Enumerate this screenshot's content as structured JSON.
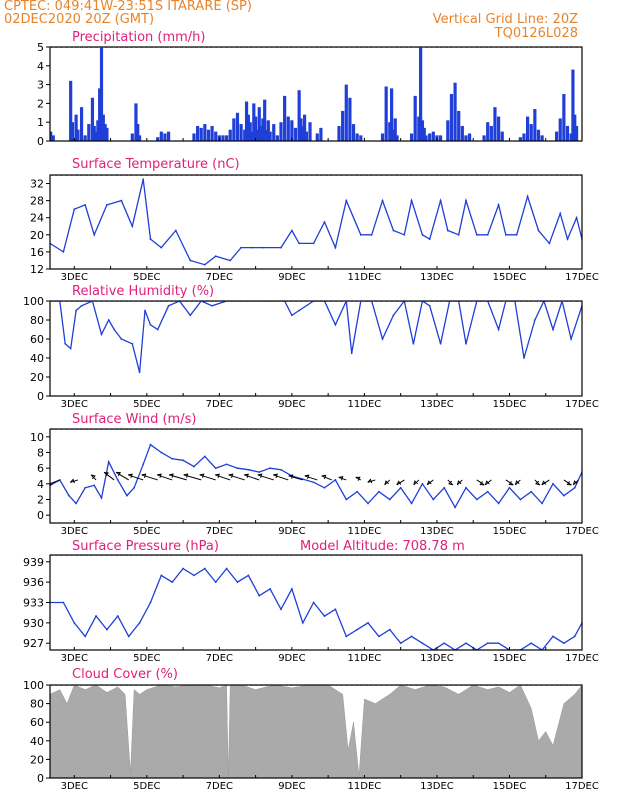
{
  "header": {
    "line1_left": "CPTEC:   049:41W-23:51S   ITARARE (SP)",
    "line2_left": "02DEC2020 20Z (GMT)",
    "line1_right": "Vertical Grid Line: 20Z",
    "line2_right": "TQ0126L028",
    "color": "#e8832a"
  },
  "colors": {
    "title": "#e0207a",
    "series": "#1f3fd8",
    "cloud": "#aaaaaa"
  },
  "x_axis": {
    "min": 2.33,
    "max": 17.0,
    "tick_values": [
      3,
      5,
      7,
      9,
      11,
      13,
      15,
      17
    ],
    "tick_labels": [
      "3DEC",
      "5DEC",
      "7DEC",
      "9DEC",
      "11DEC",
      "13DEC",
      "15DEC",
      "17DEC"
    ]
  },
  "chart_data": [
    {
      "type": "bar",
      "title": "Precipitation (mm/h)",
      "yticks": [
        0,
        1,
        2,
        3,
        4,
        5
      ],
      "ylim": [
        0,
        5
      ],
      "show_xlabels": false,
      "x": [
        2.35,
        2.42,
        2.9,
        2.95,
        3.05,
        3.1,
        3.2,
        3.3,
        3.4,
        3.5,
        3.55,
        3.6,
        3.65,
        3.7,
        3.75,
        3.8,
        3.85,
        3.9,
        4.6,
        4.7,
        4.75,
        4.8,
        5.3,
        5.4,
        5.5,
        5.6,
        6.3,
        6.4,
        6.5,
        6.6,
        6.7,
        6.8,
        6.9,
        7.0,
        7.1,
        7.2,
        7.3,
        7.4,
        7.5,
        7.6,
        7.7,
        7.75,
        7.8,
        7.85,
        7.9,
        7.95,
        8.0,
        8.05,
        8.1,
        8.15,
        8.2,
        8.25,
        8.3,
        8.35,
        8.4,
        8.5,
        8.6,
        8.7,
        8.8,
        8.9,
        9.0,
        9.1,
        9.2,
        9.25,
        9.3,
        9.35,
        9.4,
        9.5,
        9.7,
        9.8,
        10.3,
        10.4,
        10.5,
        10.6,
        10.7,
        10.8,
        10.9,
        11.5,
        11.6,
        11.7,
        11.75,
        11.8,
        11.85,
        11.9,
        12.3,
        12.4,
        12.5,
        12.55,
        12.6,
        12.65,
        12.7,
        12.8,
        12.9,
        13.0,
        13.1,
        13.3,
        13.4,
        13.5,
        13.6,
        13.7,
        13.8,
        13.9,
        14.3,
        14.4,
        14.5,
        14.6,
        14.7,
        14.8,
        15.3,
        15.4,
        15.5,
        15.6,
        15.7,
        15.8,
        15.9,
        16.3,
        16.4,
        16.5,
        16.6,
        16.7,
        16.75,
        16.8,
        16.85
      ],
      "values": [
        0.5,
        0.3,
        3.2,
        1.0,
        1.4,
        0.6,
        1.8,
        0.3,
        0.9,
        2.3,
        0.8,
        0.5,
        1.1,
        2.8,
        5.0,
        1.4,
        0.9,
        0.7,
        0.4,
        2.0,
        0.9,
        0.3,
        0.2,
        0.5,
        0.4,
        0.5,
        0.4,
        0.8,
        0.7,
        0.9,
        0.6,
        0.8,
        0.5,
        0.3,
        0.3,
        0.3,
        0.6,
        1.2,
        1.5,
        0.9,
        0.6,
        2.1,
        1.4,
        1.0,
        0.5,
        2.0,
        1.3,
        0.6,
        1.8,
        0.8,
        1.2,
        2.2,
        0.6,
        1.1,
        0.5,
        0.9,
        0.3,
        1.0,
        2.4,
        1.3,
        1.1,
        0.7,
        2.7,
        1.2,
        0.8,
        1.4,
        0.5,
        1.0,
        0.4,
        0.7,
        0.8,
        1.6,
        3.0,
        2.3,
        0.9,
        0.4,
        0.3,
        0.4,
        2.9,
        1.0,
        2.8,
        0.6,
        1.2,
        0.3,
        0.4,
        2.4,
        1.3,
        5.0,
        1.1,
        0.7,
        0.3,
        0.4,
        0.5,
        0.3,
        0.3,
        1.1,
        2.5,
        3.1,
        1.6,
        0.8,
        0.3,
        0.4,
        0.3,
        1.0,
        0.8,
        1.8,
        1.3,
        0.5,
        0.2,
        0.4,
        1.3,
        0.9,
        1.7,
        0.6,
        0.3,
        0.5,
        1.2,
        2.5,
        0.8,
        0.4,
        3.8,
        1.4,
        0.8
      ]
    },
    {
      "type": "line",
      "title": "Surface Temperature (nC)",
      "yticks": [
        12,
        16,
        20,
        24,
        28,
        32
      ],
      "ylim": [
        12,
        34
      ],
      "show_xlabels": true,
      "x": [
        2.33,
        2.7,
        3.0,
        3.3,
        3.55,
        3.9,
        4.3,
        4.6,
        4.9,
        5.1,
        5.4,
        5.8,
        6.2,
        6.6,
        6.9,
        7.3,
        7.6,
        7.9,
        8.2,
        8.7,
        9.0,
        9.2,
        9.6,
        9.9,
        10.2,
        10.5,
        10.9,
        11.2,
        11.5,
        11.8,
        12.1,
        12.3,
        12.6,
        12.8,
        13.1,
        13.3,
        13.6,
        13.8,
        14.1,
        14.4,
        14.7,
        14.9,
        15.2,
        15.5,
        15.8,
        16.1,
        16.4,
        16.6,
        16.85,
        17.0
      ],
      "values": [
        18,
        16,
        26,
        27,
        20,
        27,
        28,
        22,
        33,
        19,
        17,
        21,
        14,
        13,
        15,
        14,
        17,
        17,
        17,
        17,
        21,
        18,
        18,
        23,
        17,
        28,
        20,
        20,
        28,
        21,
        20,
        28,
        20,
        19,
        28,
        21,
        20,
        28,
        20,
        20,
        27,
        20,
        20,
        29,
        21,
        18,
        25,
        19,
        24,
        19
      ]
    },
    {
      "type": "line",
      "title": "Relative Humidity (%)",
      "yticks": [
        0,
        20,
        40,
        60,
        80,
        100
      ],
      "ylim": [
        0,
        100
      ],
      "show_xlabels": true,
      "x": [
        2.33,
        2.6,
        2.75,
        2.9,
        3.05,
        3.2,
        3.5,
        3.75,
        3.95,
        4.1,
        4.3,
        4.6,
        4.8,
        4.95,
        5.1,
        5.3,
        5.6,
        5.9,
        6.2,
        6.5,
        6.8,
        7.2,
        7.6,
        8.0,
        8.4,
        8.8,
        9.0,
        9.2,
        9.6,
        9.9,
        10.2,
        10.5,
        10.65,
        10.9,
        11.2,
        11.5,
        11.8,
        12.1,
        12.35,
        12.6,
        12.8,
        13.1,
        13.35,
        13.6,
        13.8,
        14.1,
        14.4,
        14.7,
        14.9,
        15.15,
        15.4,
        15.7,
        15.95,
        16.2,
        16.45,
        16.7,
        17.0
      ],
      "values": [
        100,
        100,
        55,
        50,
        90,
        95,
        100,
        65,
        80,
        70,
        60,
        55,
        25,
        90,
        75,
        70,
        95,
        100,
        85,
        100,
        95,
        100,
        100,
        100,
        100,
        100,
        85,
        90,
        100,
        100,
        75,
        100,
        45,
        100,
        100,
        60,
        85,
        100,
        55,
        100,
        95,
        55,
        100,
        100,
        55,
        100,
        100,
        70,
        100,
        100,
        40,
        80,
        100,
        70,
        100,
        60,
        95
      ]
    },
    {
      "type": "line",
      "title": "Surface Wind (m/s)",
      "yticks": [
        0,
        2,
        4,
        6,
        8,
        10
      ],
      "ylim": [
        -1,
        11
      ],
      "show_xlabels": true,
      "x": [
        2.33,
        2.6,
        2.85,
        3.05,
        3.3,
        3.55,
        3.75,
        3.95,
        4.2,
        4.45,
        4.65,
        4.9,
        5.1,
        5.4,
        5.7,
        6.0,
        6.3,
        6.6,
        6.9,
        7.2,
        7.5,
        7.8,
        8.1,
        8.4,
        8.7,
        9.0,
        9.3,
        9.6,
        9.9,
        10.2,
        10.5,
        10.8,
        11.1,
        11.4,
        11.7,
        12.0,
        12.3,
        12.6,
        12.9,
        13.2,
        13.5,
        13.8,
        14.1,
        14.4,
        14.7,
        15.0,
        15.3,
        15.6,
        15.9,
        16.2,
        16.5,
        16.8,
        17.0
      ],
      "values": [
        3.8,
        4.5,
        2.5,
        1.5,
        3.5,
        3.8,
        2.2,
        6.8,
        4.5,
        2.5,
        3.5,
        6.5,
        9.0,
        8.0,
        7.2,
        7.0,
        6.2,
        7.5,
        6.0,
        6.5,
        6.0,
        5.8,
        5.5,
        6.0,
        5.8,
        5.0,
        4.6,
        4.2,
        3.5,
        4.5,
        2.0,
        3.0,
        1.5,
        3.0,
        2.0,
        3.5,
        1.5,
        4.0,
        2.0,
        3.5,
        1.0,
        3.5,
        2.0,
        3.0,
        1.5,
        3.5,
        2.0,
        3.0,
        1.5,
        4.0,
        2.5,
        3.5,
        5.5
      ],
      "arrows": {
        "x": [
          2.6,
          3.1,
          3.6,
          4.1,
          4.5,
          4.9,
          5.3,
          5.7,
          6.1,
          6.5,
          6.9,
          7.3,
          7.7,
          8.1,
          8.5,
          8.9,
          9.3,
          9.7,
          10.1,
          10.5,
          10.9,
          11.3,
          11.7,
          12.1,
          12.5,
          12.9,
          13.3,
          13.7,
          14.1,
          14.5,
          14.9,
          15.3,
          15.7,
          16.1,
          16.5,
          16.9
        ],
        "u": [
          -2.5,
          -1.5,
          -1.0,
          -2.0,
          -2.5,
          -3.0,
          -3.2,
          -3.0,
          -3.5,
          -3.5,
          -3.2,
          -3.0,
          -3.2,
          -3.0,
          -3.2,
          -3.0,
          -2.8,
          -2.5,
          -2.0,
          -1.5,
          -1.0,
          -1.5,
          -1.0,
          -1.5,
          -1.0,
          -1.2,
          1.0,
          -1.0,
          1.5,
          -1.2,
          1.5,
          -1.0,
          1.0,
          -1.5,
          1.5,
          -1.0
        ],
        "v": [
          -1.0,
          -0.5,
          1.0,
          1.5,
          1.5,
          1.0,
          1.0,
          1.0,
          1.0,
          1.0,
          1.0,
          1.0,
          1.0,
          1.0,
          1.0,
          1.0,
          0.8,
          0.8,
          0.8,
          0.5,
          0.5,
          -0.5,
          -1.0,
          -1.0,
          -1.0,
          -1.0,
          -1.0,
          -1.0,
          -1.0,
          -1.0,
          -1.0,
          -1.0,
          -1.0,
          -1.0,
          -1.0,
          -1.0
        ]
      }
    },
    {
      "type": "line",
      "title": "Surface Pressure (hPa)",
      "subtitle": "Model Altitude: 708.78  m",
      "yticks": [
        927,
        930,
        933,
        936,
        939
      ],
      "ylim": [
        926,
        940
      ],
      "show_xlabels": true,
      "x": [
        2.33,
        2.7,
        3.0,
        3.3,
        3.6,
        3.9,
        4.2,
        4.5,
        4.8,
        5.1,
        5.4,
        5.7,
        6.0,
        6.3,
        6.6,
        6.9,
        7.2,
        7.5,
        7.8,
        8.1,
        8.4,
        8.7,
        9.0,
        9.3,
        9.6,
        9.9,
        10.2,
        10.5,
        10.8,
        11.1,
        11.4,
        11.7,
        12.0,
        12.3,
        12.6,
        12.9,
        13.2,
        13.5,
        13.8,
        14.1,
        14.4,
        14.7,
        15.0,
        15.3,
        15.6,
        15.9,
        16.2,
        16.5,
        16.8,
        17.0
      ],
      "values": [
        933,
        933,
        930,
        928,
        931,
        929,
        931,
        928,
        930,
        933,
        937,
        936,
        938,
        937,
        938,
        936,
        938,
        936,
        937,
        934,
        935,
        932,
        935,
        930,
        933,
        931,
        932,
        928,
        929,
        930,
        928,
        929,
        927,
        928,
        927,
        926,
        927,
        926,
        927,
        926,
        927,
        927,
        926,
        926,
        927,
        926,
        928,
        927,
        928,
        930
      ]
    },
    {
      "type": "area",
      "title": "Cloud Cover (%)",
      "yticks": [
        0,
        20,
        40,
        60,
        80,
        100
      ],
      "ylim": [
        0,
        100
      ],
      "show_xlabels": true,
      "x": [
        2.33,
        2.6,
        2.8,
        3.0,
        3.3,
        3.6,
        3.9,
        4.2,
        4.4,
        4.55,
        4.65,
        4.8,
        5.0,
        5.4,
        5.8,
        6.2,
        6.6,
        7.0,
        7.2,
        7.25,
        7.3,
        7.6,
        8.0,
        8.5,
        9.0,
        9.5,
        10.0,
        10.4,
        10.55,
        10.7,
        10.85,
        11.0,
        11.3,
        11.7,
        12.0,
        12.4,
        12.8,
        13.2,
        13.6,
        14.0,
        14.4,
        14.7,
        15.0,
        15.3,
        15.6,
        15.8,
        16.0,
        16.2,
        16.5,
        16.8,
        17.0
      ],
      "values": [
        90,
        95,
        80,
        100,
        95,
        100,
        92,
        98,
        90,
        5,
        95,
        90,
        95,
        100,
        98,
        100,
        100,
        97,
        100,
        0,
        100,
        100,
        95,
        100,
        97,
        100,
        100,
        90,
        30,
        60,
        2,
        85,
        80,
        90,
        100,
        95,
        100,
        98,
        90,
        100,
        95,
        98,
        92,
        100,
        75,
        40,
        50,
        35,
        80,
        90,
        100
      ]
    }
  ]
}
